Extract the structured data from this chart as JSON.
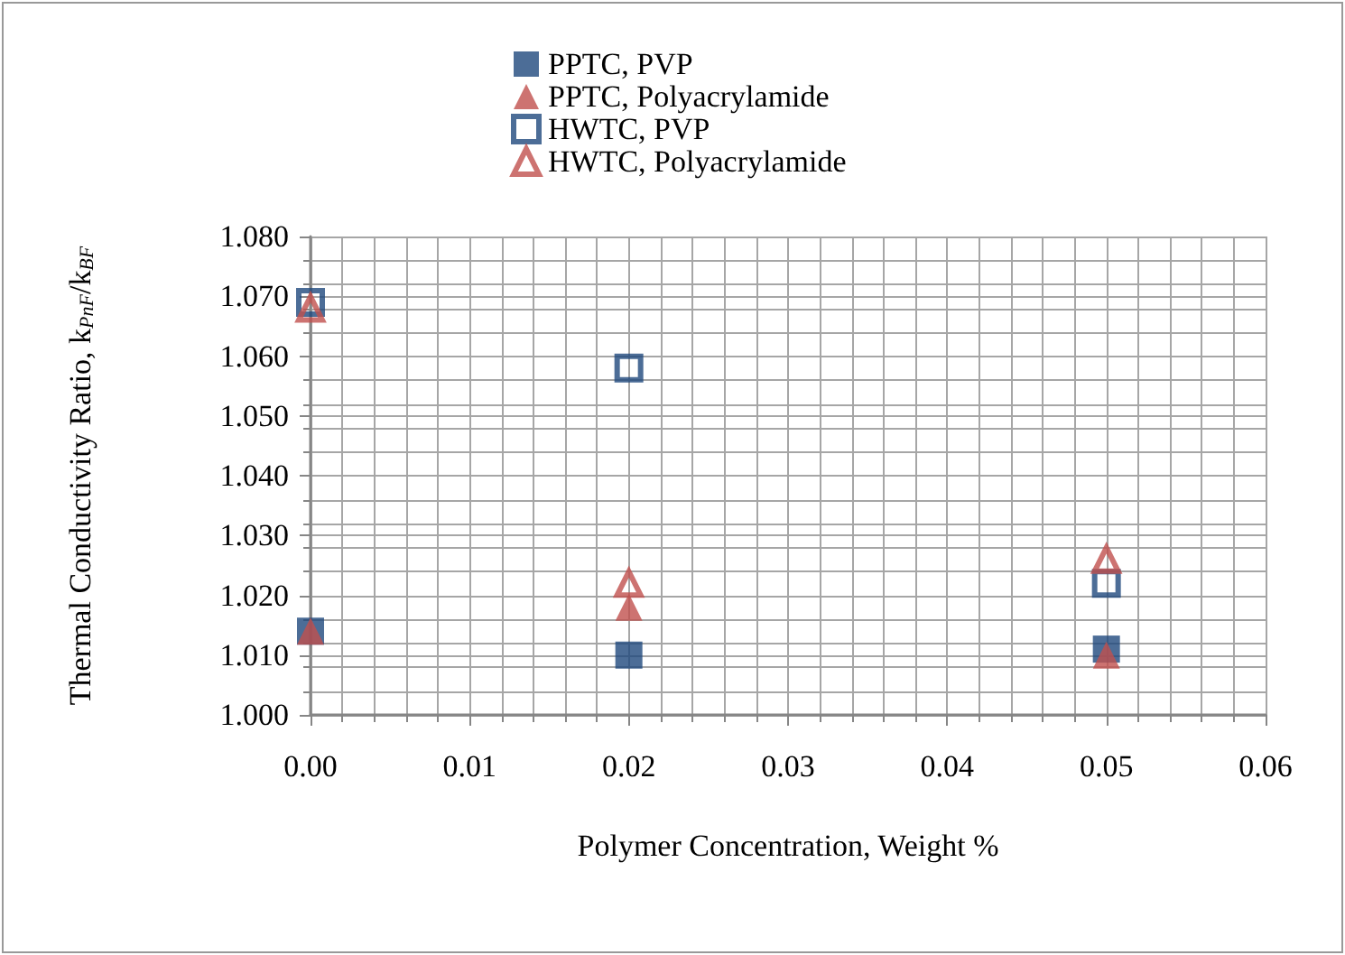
{
  "chart_data": {
    "type": "scatter",
    "xlabel": "Polymer Concentration, Weight %",
    "ylabel": "Thermal Conductivity Ratio, k$_{PnF}$/k$_{BF}$",
    "x": [
      0,
      0.02,
      0.05
    ],
    "series": [
      {
        "name": "PPTC, PVP",
        "color": "#1f497d",
        "marker": "square",
        "values": [
          1.014,
          1.01,
          1.011
        ]
      },
      {
        "name": "PPTC, Polyacrylamide",
        "color": "#c0504d",
        "marker": "triangle",
        "values": [
          1.014,
          1.018,
          1.01
        ]
      },
      {
        "name": "HWTC, PVP",
        "color": "#1f497d",
        "marker": "square",
        "values": [
          1.069,
          1.058,
          1.022
        ]
      },
      {
        "name": "HWTC, Polyacrylamide",
        "color": "#c0504d",
        "marker": "triangle",
        "values": [
          1.068,
          1.022,
          1.026
        ]
      }
    ],
    "xlim": [
      0,
      0.06
    ],
    "xticks": [
      {
        "value": 0,
        "label": "0.00"
      },
      {
        "value": 0.01,
        "label": "0.01"
      },
      {
        "value": 0.02,
        "label": "0.02"
      },
      {
        "value": 0.03,
        "label": "0.03"
      },
      {
        "value": 0.04,
        "label": "0.04"
      },
      {
        "value": 0.05,
        "label": "0.05"
      },
      {
        "value": 0.06,
        "label": "0.06"
      }
    ],
    "ylim": [
      1.0,
      1.08
    ],
    "yticks": [
      {
        "value": 1,
        "label": "1.000"
      },
      {
        "value": 1.01,
        "label": "1.010"
      },
      {
        "value": 1.02,
        "label": "1.020"
      },
      {
        "value": 1.03,
        "label": "1.030"
      },
      {
        "value": 1.04,
        "label": "1.040"
      },
      {
        "value": 1.05,
        "label": "1.050"
      },
      {
        "value": 1.06,
        "label": "1.060"
      },
      {
        "value": 1.07,
        "label": "1.070"
      },
      {
        "value": 1.08,
        "label": "1.080"
      }
    ],
    "grid": true,
    "legend": "top"
  }
}
